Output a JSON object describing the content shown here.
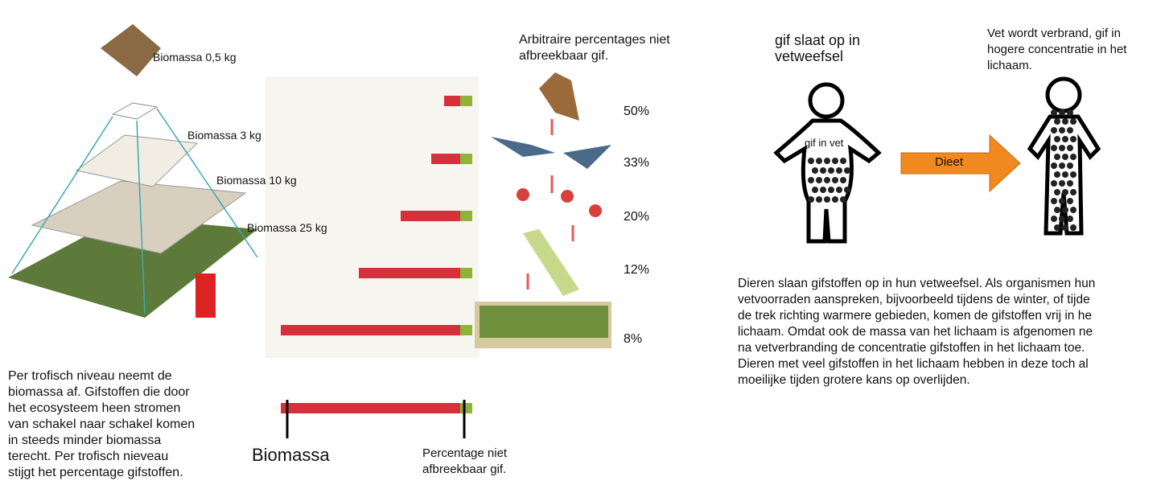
{
  "pyramid": {
    "levels": [
      "Biomassa 0,5 kg",
      "Biomassa 3 kg",
      "Biomassa 10 kg",
      "Biomassa 25 kg"
    ],
    "caption": [
      "Per trofisch niveau neemt de",
      "biomassa af. Gifstoffen die door",
      "het ecosysteem heen stromen",
      "van schakel naar schakel komen",
      "in steeds minder biomassa",
      "terecht. Per trofisch nieveau",
      "stijgt het percentage gifstoffen."
    ]
  },
  "bars": {
    "title": [
      "Arbitraire percentages niet",
      "afbreekbaar  gif."
    ],
    "percentages": [
      "50%",
      "33%",
      "20%",
      "12%",
      "8%"
    ],
    "legend_biomass": "Biomassa",
    "legend_percentage": [
      "Percentage niet",
      "afbreekbaar gif."
    ]
  },
  "fat": {
    "left_title": [
      "gif slaat op in",
      "vetweefsel"
    ],
    "right_title": [
      "Vet wordt verbrand, gif in",
      "hogere concentratie in het",
      "lichaam."
    ],
    "inner_label": "gif in vet",
    "arrow_label": "Dieet",
    "body": [
      "Dieren slaan gifstoffen op in hun vetweefsel. Als organismen hun",
      "vetvoorraden aanspreken, bijvoorbeeld tijdens de winter, of tijde",
      "de trek richting warmere gebieden, komen de gifstoffen vrij in he",
      "lichaam. Omdat ook de massa van het lichaam is afgenomen ne",
      "na vetverbranding de concentratie gifstoffen in het lichaam toe.",
      "Dieren met veel gifstoffen in het lichaam hebben in deze toch al",
      "moeilijke tijden grotere kans op overlijden."
    ]
  }
}
